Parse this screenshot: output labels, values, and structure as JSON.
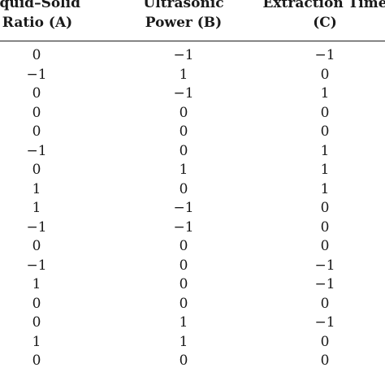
{
  "table": {
    "headers": [
      {
        "lines": [
          "iquid–Solid",
          "Ratio (A)"
        ]
      },
      {
        "lines": [
          "Ultrasonic",
          "Power (B)"
        ]
      },
      {
        "lines": [
          "Extraction Time",
          "(C)"
        ]
      }
    ],
    "rows": [
      [
        "0",
        "−1",
        "−1"
      ],
      [
        "−1",
        "1",
        "0"
      ],
      [
        "0",
        "−1",
        "1"
      ],
      [
        "0",
        "0",
        "0"
      ],
      [
        "0",
        "0",
        "0"
      ],
      [
        "−1",
        "0",
        "1"
      ],
      [
        "0",
        "1",
        "1"
      ],
      [
        "1",
        "0",
        "1"
      ],
      [
        "1",
        "−1",
        "0"
      ],
      [
        "−1",
        "−1",
        "0"
      ],
      [
        "0",
        "0",
        "0"
      ],
      [
        "−1",
        "0",
        "−1"
      ],
      [
        "1",
        "0",
        "−1"
      ],
      [
        "0",
        "0",
        "0"
      ],
      [
        "0",
        "1",
        "−1"
      ],
      [
        "1",
        "1",
        "0"
      ],
      [
        "0",
        "0",
        "0"
      ]
    ]
  }
}
